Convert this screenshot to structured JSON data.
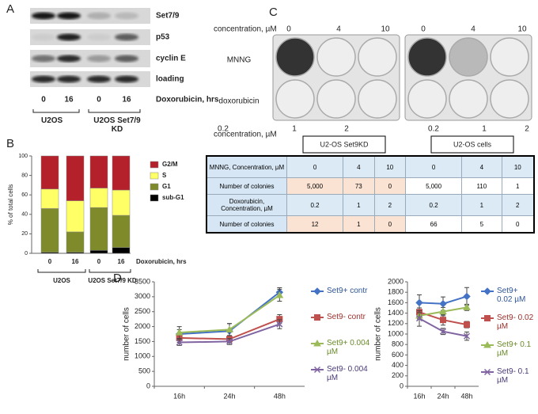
{
  "panel_labels": [
    "A",
    "B",
    "C",
    "D"
  ],
  "blot": {
    "rows": [
      "Set7/9",
      "p53",
      "cyclin E",
      "loading"
    ],
    "lanes": [
      "0",
      "16",
      "0",
      "16"
    ],
    "treatment": "Doxorubicin, hrs",
    "groups": [
      "U2OS",
      "U2OS Set7/9 KD"
    ]
  },
  "plates": {
    "concentration_label": "concentration, µM",
    "top_concentrations": [
      "0",
      "4",
      "10",
      "0",
      "4",
      "10"
    ],
    "rows": [
      "MNNG",
      "doxorubicin"
    ],
    "bottom_concentration_label": "concentration, µM",
    "bottom_concentrations": [
      "0.2",
      "1",
      "2",
      "0.2",
      "1",
      "2"
    ],
    "groups": [
      "U2-OS Set9KD",
      "U2-OS cells"
    ]
  },
  "table": {
    "rows": [
      [
        "MNNG, Concentration, µM",
        "0",
        "4",
        "10",
        "0",
        "4",
        "10"
      ],
      [
        "Number of colonies",
        "5,000",
        "73",
        "0",
        "5,000",
        "110",
        "1"
      ],
      [
        "Doxorubicin, Concentration, µM",
        "0.2",
        "1",
        "2",
        "0.2",
        "1",
        "2"
      ],
      [
        "Number of colonies",
        "12",
        "1",
        "0",
        "66",
        "5",
        "0"
      ]
    ]
  },
  "chart_data": [
    {
      "type": "stacked_bar",
      "ylabel": "% of total cells",
      "xlabel": "Doxorubicin, hrs",
      "categories": [
        "0",
        "16",
        "0",
        "16"
      ],
      "groups": [
        "U2OS",
        "U2OS Set7/9 KD"
      ],
      "ylim": [
        0,
        100
      ],
      "yticks": [
        0,
        20,
        40,
        60,
        80,
        100
      ],
      "series": [
        {
          "name": "sub-G1",
          "color": "#000000",
          "values": [
            1,
            1,
            3,
            6
          ]
        },
        {
          "name": "G1",
          "color": "#7f8a2a",
          "values": [
            45,
            21,
            44,
            33
          ]
        },
        {
          "name": "S",
          "color": "#ffff66",
          "values": [
            20,
            32,
            20,
            26
          ]
        },
        {
          "name": "G2/M",
          "color": "#b5212a",
          "values": [
            34,
            46,
            33,
            35
          ]
        }
      ]
    },
    {
      "type": "line",
      "ylabel": "number of cells",
      "categories": [
        "16h",
        "24h",
        "48h"
      ],
      "ylim": [
        0,
        3500
      ],
      "yticks": [
        0,
        500,
        1000,
        1500,
        2000,
        2500,
        3000,
        3500
      ],
      "series": [
        {
          "name": "Set9+ contr",
          "color": "#4472c4",
          "marker": "diamond",
          "values": [
            1750,
            1850,
            3150
          ],
          "errors": [
            150,
            250,
            150
          ]
        },
        {
          "name": "Set9- contr",
          "color": "#c0504d",
          "marker": "square",
          "values": [
            1620,
            1580,
            2250
          ],
          "errors": [
            150,
            120,
            150
          ]
        },
        {
          "name": "Set9+ 0.004 µM",
          "color": "#9bbb59",
          "marker": "triangle",
          "values": [
            1800,
            1900,
            3050
          ],
          "errors": [
            200,
            200,
            200
          ]
        },
        {
          "name": "Set9- 0.004 µM",
          "color": "#8064a2",
          "marker": "x",
          "values": [
            1470,
            1500,
            2080
          ],
          "errors": [
            100,
            100,
            150
          ]
        }
      ]
    },
    {
      "type": "line",
      "ylabel": "number of cells",
      "categories": [
        "16h",
        "24h",
        "48h"
      ],
      "ylim": [
        0,
        2000
      ],
      "yticks": [
        0,
        200,
        400,
        600,
        800,
        1000,
        1200,
        1400,
        1600,
        1800,
        2000
      ],
      "series": [
        {
          "name": "Set9+ 0.02 µM",
          "color": "#4472c4",
          "marker": "diamond",
          "values": [
            1600,
            1580,
            1720
          ],
          "errors": [
            150,
            130,
            170
          ]
        },
        {
          "name": "Set9- 0.02 µM",
          "color": "#c0504d",
          "marker": "square",
          "values": [
            1420,
            1270,
            1180
          ],
          "errors": [
            80,
            100,
            60
          ]
        },
        {
          "name": "Set9+ 0.1 µM",
          "color": "#9bbb59",
          "marker": "triangle",
          "values": [
            1350,
            1430,
            1510
          ],
          "errors": [
            60,
            80,
            60
          ]
        },
        {
          "name": "Set9- 0.1 µM",
          "color": "#8064a2",
          "marker": "x",
          "values": [
            1300,
            1050,
            960
          ],
          "errors": [
            150,
            60,
            80
          ]
        }
      ]
    }
  ]
}
